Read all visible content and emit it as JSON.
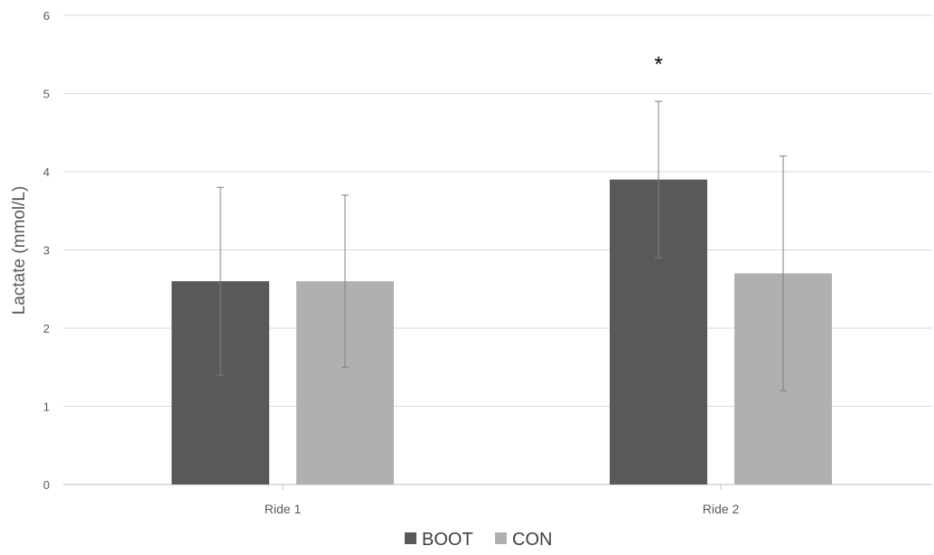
{
  "chart_data": {
    "type": "bar",
    "categories": [
      "Ride 1",
      "Ride 2"
    ],
    "series": [
      {
        "name": "BOOT",
        "values": [
          2.6,
          3.9
        ],
        "errors": [
          1.2,
          1.0
        ],
        "color": "#595959"
      },
      {
        "name": "CON",
        "values": [
          2.6,
          2.7
        ],
        "errors": [
          1.1,
          1.5
        ],
        "color": "#b0b0b0"
      }
    ],
    "ylabel": "Lactate (mmol/L)",
    "xlabel": "",
    "ylim": [
      0,
      6
    ],
    "yticks": [
      0,
      1,
      2,
      3,
      4,
      5,
      6
    ],
    "grid": true,
    "legend": "bottom",
    "annotations": [
      {
        "text": "*",
        "category": "Ride 2",
        "series": "BOOT"
      }
    ],
    "gridColor": "#d9d9d9",
    "axisColor": "#bfbfbf"
  }
}
